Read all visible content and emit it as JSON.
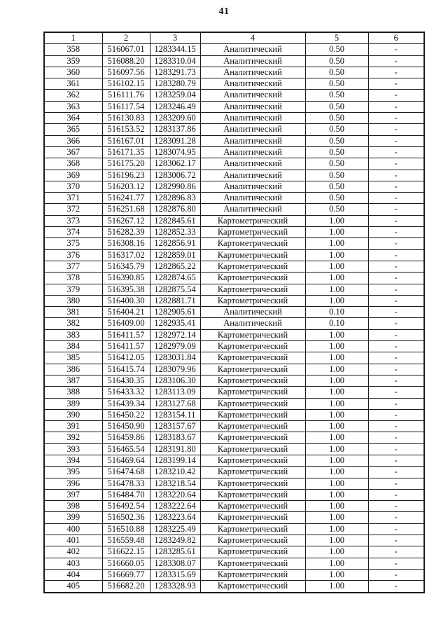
{
  "page": {
    "number": "41"
  },
  "table": {
    "headers": [
      "1",
      "2",
      "3",
      "4",
      "5",
      "6"
    ],
    "rows": [
      [
        "358",
        "516067.01",
        "1283344.15",
        "Аналитический",
        "0.50",
        "-"
      ],
      [
        "359",
        "516088.20",
        "1283310.04",
        "Аналитический",
        "0.50",
        "-"
      ],
      [
        "360",
        "516097.56",
        "1283291.73",
        "Аналитический",
        "0.50",
        "-"
      ],
      [
        "361",
        "516102.15",
        "1283280.79",
        "Аналитический",
        "0.50",
        "-"
      ],
      [
        "362",
        "516111.76",
        "1283259.04",
        "Аналитический",
        "0.50",
        "-"
      ],
      [
        "363",
        "516117.54",
        "1283246.49",
        "Аналитический",
        "0.50",
        "-"
      ],
      [
        "364",
        "516130.83",
        "1283209.60",
        "Аналитический",
        "0.50",
        "-"
      ],
      [
        "365",
        "516153.52",
        "1283137.86",
        "Аналитический",
        "0.50",
        "-"
      ],
      [
        "366",
        "516167.01",
        "1283091.28",
        "Аналитический",
        "0.50",
        "-"
      ],
      [
        "367",
        "516171.35",
        "1283074.95",
        "Аналитический",
        "0.50",
        "-"
      ],
      [
        "368",
        "516175.20",
        "1283062.17",
        "Аналитический",
        "0.50",
        "-"
      ],
      [
        "369",
        "516196.23",
        "1283006.72",
        "Аналитический",
        "0.50",
        "-"
      ],
      [
        "370",
        "516203.12",
        "1282990.86",
        "Аналитический",
        "0.50",
        "-"
      ],
      [
        "371",
        "516241.77",
        "1282896.83",
        "Аналитический",
        "0.50",
        "-"
      ],
      [
        "372",
        "516251.68",
        "1282876.80",
        "Аналитический",
        "0.50",
        "-"
      ],
      [
        "373",
        "516267.12",
        "1282845.61",
        "Картометрический",
        "1.00",
        "-"
      ],
      [
        "374",
        "516282.39",
        "1282852.33",
        "Картометрический",
        "1.00",
        "-"
      ],
      [
        "375",
        "516308.16",
        "1282856.91",
        "Картометрический",
        "1.00",
        "-"
      ],
      [
        "376",
        "516317.02",
        "1282859.01",
        "Картометрический",
        "1.00",
        "-"
      ],
      [
        "377",
        "516345.79",
        "1282865.22",
        "Картометрический",
        "1.00",
        "-"
      ],
      [
        "378",
        "516390.85",
        "1282874.65",
        "Картометрический",
        "1.00",
        "-"
      ],
      [
        "379",
        "516395.38",
        "1282875.54",
        "Картометрический",
        "1.00",
        "-"
      ],
      [
        "380",
        "516400.30",
        "1282881.71",
        "Картометрический",
        "1.00",
        "-"
      ],
      [
        "381",
        "516404.21",
        "1282905.61",
        "Аналитический",
        "0.10",
        "-"
      ],
      [
        "382",
        "516409.00",
        "1282935.41",
        "Аналитический",
        "0.10",
        "-"
      ],
      [
        "383",
        "516411.57",
        "1282972.14",
        "Картометрический",
        "1.00",
        "-"
      ],
      [
        "384",
        "516411.57",
        "1282979.09",
        "Картометрический",
        "1.00",
        "-"
      ],
      [
        "385",
        "516412.05",
        "1283031.84",
        "Картометрический",
        "1.00",
        "-"
      ],
      [
        "386",
        "516415.74",
        "1283079.96",
        "Картометрический",
        "1.00",
        "-"
      ],
      [
        "387",
        "516430.35",
        "1283106.30",
        "Картометрический",
        "1.00",
        "-"
      ],
      [
        "388",
        "516433.32",
        "1283113.09",
        "Картометрический",
        "1.00",
        "-"
      ],
      [
        "389",
        "516439.34",
        "1283127.68",
        "Картометрический",
        "1.00",
        "-"
      ],
      [
        "390",
        "516450.22",
        "1283154.11",
        "Картометрический",
        "1.00",
        "-"
      ],
      [
        "391",
        "516450.90",
        "1283157.67",
        "Картометрический",
        "1.00",
        "-"
      ],
      [
        "392",
        "516459.86",
        "1283183.67",
        "Картометрический",
        "1.00",
        "-"
      ],
      [
        "393",
        "516465.54",
        "1283191.80",
        "Картометрический",
        "1.00",
        "-"
      ],
      [
        "394",
        "516469.64",
        "1283199.14",
        "Картометрический",
        "1.00",
        "-"
      ],
      [
        "395",
        "516474.68",
        "1283210.42",
        "Картометрический",
        "1.00",
        "-"
      ],
      [
        "396",
        "516478.33",
        "1283218.54",
        "Картометрический",
        "1.00",
        "-"
      ],
      [
        "397",
        "516484.70",
        "1283220.64",
        "Картометрический",
        "1.00",
        "-"
      ],
      [
        "398",
        "516492.54",
        "1283222.64",
        "Картометрический",
        "1.00",
        "-"
      ],
      [
        "399",
        "516502.36",
        "1283223.64",
        "Картометрический",
        "1.00",
        "-"
      ],
      [
        "400",
        "516510.88",
        "1283225.49",
        "Картометрический",
        "1.00",
        "-"
      ],
      [
        "401",
        "516559.48",
        "1283249.82",
        "Картометрический",
        "1.00",
        "-"
      ],
      [
        "402",
        "516622.15",
        "1283285.61",
        "Картометрический",
        "1.00",
        "-"
      ],
      [
        "403",
        "516660.05",
        "1283308.07",
        "Картометрический",
        "1.00",
        "-"
      ],
      [
        "404",
        "516669.77",
        "1283315.69",
        "Картометрический",
        "1.00",
        "-"
      ],
      [
        "405",
        "516682.20",
        "1283328.93",
        "Картометрический",
        "1.00",
        "-"
      ]
    ]
  }
}
